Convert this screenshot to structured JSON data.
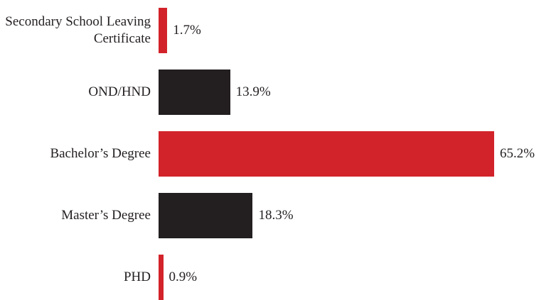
{
  "chart_data": {
    "type": "bar",
    "orientation": "horizontal",
    "categories": [
      "Secondary School Leaving Certificate",
      "OND/HND",
      "Bachelor’s Degree",
      "Master’s Degree",
      "PHD"
    ],
    "values": [
      1.7,
      13.9,
      65.2,
      18.3,
      0.9
    ],
    "value_labels": [
      "1.7%",
      "13.9%",
      "65.2%",
      "18.3%",
      "0.9%"
    ],
    "colors": [
      "#d2232a",
      "#231f20",
      "#d2232a",
      "#231f20",
      "#d2232a"
    ]
  }
}
